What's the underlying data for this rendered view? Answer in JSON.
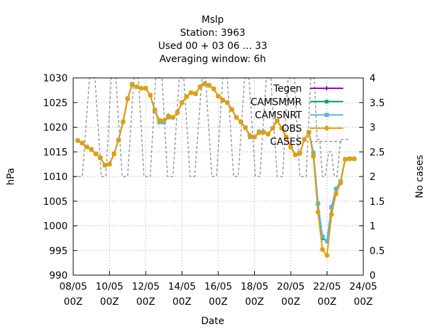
{
  "chart_data": {
    "type": "line",
    "title_lines": [
      "Mslp",
      "Station:     3963",
      "Used  00 + 03 06 ... 33",
      "Averaging window:  6h"
    ],
    "xlabel": "Date",
    "ylabel": "hPa",
    "y2label": "No cases",
    "xlim": [
      0,
      16
    ],
    "ylim": [
      990,
      1030
    ],
    "y2lim": [
      0,
      4
    ],
    "x_ticks": [
      {
        "x": 0,
        "line1": "08/05",
        "line2": "00Z"
      },
      {
        "x": 2,
        "line1": "10/05",
        "line2": "00Z"
      },
      {
        "x": 4,
        "line1": "12/05",
        "line2": "00Z"
      },
      {
        "x": 6,
        "line1": "14/05",
        "line2": "00Z"
      },
      {
        "x": 8,
        "line1": "16/05",
        "line2": "00Z"
      },
      {
        "x": 10,
        "line1": "18/05",
        "line2": "00Z"
      },
      {
        "x": 12,
        "line1": "20/05",
        "line2": "00Z"
      },
      {
        "x": 14,
        "line1": "22/05",
        "line2": "00Z"
      },
      {
        "x": 16,
        "line1": "24/05",
        "line2": "00Z"
      }
    ],
    "y_ticks": [
      "990",
      "995",
      "1000",
      "1005",
      "1010",
      "1015",
      "1020",
      "1025",
      "1030"
    ],
    "y2_ticks": [
      "0",
      "0.5",
      "1",
      "1.5",
      "2",
      "2.5",
      "3",
      "3.5",
      "4"
    ],
    "grid": true,
    "legend_position": "top-right",
    "x": [
      0.25,
      0.5,
      0.75,
      1,
      1.25,
      1.5,
      1.75,
      2,
      2.25,
      2.5,
      2.75,
      3,
      3.25,
      3.5,
      3.75,
      4,
      4.25,
      4.5,
      4.75,
      5,
      5.25,
      5.5,
      5.75,
      6,
      6.25,
      6.5,
      6.75,
      7,
      7.25,
      7.5,
      7.75,
      8,
      8.25,
      8.5,
      8.75,
      9,
      9.25,
      9.5,
      9.75,
      10,
      10.25,
      10.5,
      10.75,
      11,
      11.25,
      11.5,
      11.75,
      12,
      12.25,
      12.5,
      12.75,
      13,
      13.25,
      13.5,
      13.75,
      14,
      14.25,
      14.5,
      14.75,
      15,
      15.25,
      15.5
    ],
    "series": [
      {
        "name": "Tegen",
        "color": "#9400d3",
        "marker": "plus",
        "values": [
          1017.3,
          1016.8,
          1016.0,
          1015.5,
          1014.6,
          1013.8,
          1012.3,
          1012.5,
          1014.6,
          1017.4,
          1021.1,
          1025.7,
          1028.7,
          1028.2,
          1027.9,
          1027.9,
          1026.5,
          1023.5,
          1021.4,
          1021.3,
          1022.3,
          1022.0,
          1023.0,
          1025.0,
          1026.2,
          1027.0,
          1026.8,
          1028.2,
          1028.8,
          1028.5,
          1027.8,
          1026.3,
          1025.5,
          1025.0,
          1023.6,
          1022.0,
          1021.1,
          1019.9,
          1018.3,
          1018.0,
          1018.9,
          1019.0,
          1018.6,
          1019.8,
          1021.3,
          1019.8,
          1018.0,
          1016.0,
          1014.4,
          1014.7,
          1017.5,
          1019.0,
          1014.8,
          1004.5,
          997.5,
          996.9,
          1003.8,
          1007.5,
          1009.0,
          1013.5,
          1013.6,
          1013.6
        ]
      },
      {
        "name": "CAMSMMR",
        "color": "#009e73",
        "marker": "star",
        "values": [
          1017.3,
          1016.8,
          1016.0,
          1015.5,
          1014.6,
          1013.8,
          1012.3,
          1012.5,
          1014.6,
          1017.4,
          1021.1,
          1025.8,
          1028.7,
          1028.2,
          1027.9,
          1027.9,
          1026.5,
          1023.5,
          1021.4,
          1021.3,
          1022.3,
          1022.0,
          1023.0,
          1025.0,
          1026.2,
          1027.0,
          1026.8,
          1028.2,
          1028.8,
          1028.5,
          1027.8,
          1026.3,
          1025.5,
          1025.0,
          1023.6,
          1022.0,
          1021.1,
          1019.9,
          1018.3,
          1018.0,
          1018.9,
          1019.0,
          1018.6,
          1019.8,
          1021.3,
          1019.8,
          1018.0,
          1016.0,
          1014.4,
          1014.7,
          1017.5,
          1019.0,
          1014.8,
          1004.5,
          997.5,
          996.9,
          1003.8,
          1007.5,
          1009.0,
          1013.5,
          1013.6,
          1013.6
        ]
      },
      {
        "name": "CAMSNRT",
        "color": "#56b4e9",
        "marker": "box",
        "values": [
          1017.3,
          1016.8,
          1016.0,
          1015.5,
          1014.6,
          1013.8,
          1012.3,
          1012.5,
          1014.6,
          1017.4,
          1021.1,
          1025.8,
          1028.7,
          1028.2,
          1027.9,
          1027.9,
          1026.5,
          1023.3,
          1021.0,
          1021.0,
          1022.0,
          1022.0,
          1023.0,
          1025.0,
          1026.2,
          1027.0,
          1026.8,
          1028.2,
          1028.8,
          1028.5,
          1027.8,
          1026.3,
          1025.5,
          1025.0,
          1023.6,
          1022.0,
          1021.1,
          1019.9,
          1018.0,
          1018.0,
          1019.1,
          1019.0,
          1018.6,
          1019.8,
          1021.3,
          1019.8,
          1018.0,
          1016.0,
          1014.4,
          1014.7,
          1017.5,
          1019.0,
          1014.8,
          1004.5,
          997.8,
          996.9,
          1003.8,
          1007.5,
          1009.0,
          1013.5,
          1013.6,
          1013.6
        ]
      },
      {
        "name": "OBS",
        "color": "#e69f00",
        "marker": "circle",
        "values": [
          1017.3,
          1016.8,
          1016.0,
          1015.5,
          1014.6,
          1013.8,
          1012.3,
          1012.5,
          1014.6,
          1017.4,
          1021.1,
          1025.8,
          1028.7,
          1028.2,
          1027.9,
          1027.9,
          1026.5,
          1023.5,
          1021.4,
          1021.3,
          1022.3,
          1022.0,
          1023.0,
          1025.0,
          1026.2,
          1027.0,
          1026.8,
          1028.2,
          1028.8,
          1028.5,
          1027.8,
          1026.3,
          1025.5,
          1025.0,
          1023.6,
          1022.0,
          1021.1,
          1019.9,
          1018.3,
          1018.0,
          1018.9,
          1019.0,
          1018.6,
          1019.8,
          1021.3,
          1019.8,
          1018.0,
          1016.0,
          1014.4,
          1014.7,
          1017.5,
          1019.0,
          1014.1,
          1002.8,
          995.2,
          994.0,
          1002.3,
          1006.5,
          1008.7,
          1013.5,
          1013.6,
          1013.6
        ]
      },
      {
        "name": "CASES",
        "color": "#999999",
        "dashed": true,
        "axis": "y2",
        "x": [
          0,
          0.3,
          0.5,
          0.9,
          1.2,
          1.55,
          1.8,
          2.1,
          2.35,
          2.7,
          3.0,
          3.35,
          3.6,
          3.9,
          4.25,
          4.55,
          4.9,
          5.2,
          5.5,
          5.85,
          6.1,
          6.45,
          6.7,
          7.1,
          7.3,
          7.65,
          7.9,
          8.25,
          8.5,
          8.85,
          9.1,
          9.45,
          9.7,
          10.05,
          10.3,
          10.65,
          10.9,
          11.25,
          11.55,
          11.85,
          12.2,
          12.5,
          12.85,
          13.1,
          13.3,
          13.45,
          13.6,
          13.75,
          13.9,
          14.1,
          14.25,
          14.4,
          14.55,
          14.75,
          15.0,
          15.2
        ],
        "values": [
          2,
          2,
          2,
          4,
          4,
          2,
          2,
          4,
          4,
          2,
          2,
          4,
          4,
          2,
          2,
          4,
          4,
          2,
          2,
          4,
          4,
          2,
          2,
          4,
          4,
          2,
          2,
          4,
          4,
          2,
          2,
          4,
          4,
          2,
          2,
          4,
          4,
          2,
          2,
          4,
          4,
          2,
          2,
          4,
          4,
          2.75,
          2.75,
          2,
          2,
          2.5,
          2.5,
          2,
          2,
          2.75,
          2.75,
          2.75
        ]
      }
    ]
  }
}
